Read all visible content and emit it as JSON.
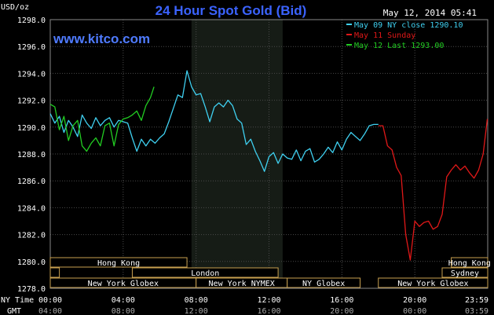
{
  "header": {
    "title": "24 Hour Spot Gold (Bid)",
    "unit": "USD/oz",
    "timestamp": "May 12, 2014 05:41",
    "watermark": "www.kitco.com"
  },
  "colors": {
    "background": "#000000",
    "plot_background": "#000000",
    "night_band": "#161c16",
    "grid": "#4a4a4a",
    "axis_text": "#ffffff",
    "title": "#3b63ff",
    "watermark": "#4f7bff",
    "cyan": "#3fd0f0",
    "red": "#e01818",
    "green": "#22cc22",
    "session_border": "#c8a050"
  },
  "chart_data": {
    "type": "line",
    "title": "24 Hour Spot Gold (Bid)",
    "ylabel": "USD/oz",
    "ylim": [
      1278.0,
      1298.0
    ],
    "y_ticks": [
      "1278.0",
      "1280.0",
      "1282.0",
      "1284.0",
      "1286.0",
      "1288.0",
      "1290.0",
      "1292.0",
      "1294.0",
      "1296.0",
      "1298.0"
    ],
    "y_tick_values": [
      1278,
      1280,
      1282,
      1284,
      1286,
      1288,
      1290,
      1292,
      1294,
      1296,
      1298
    ],
    "x_range_hours": [
      0,
      24
    ],
    "x_tick_hours": [
      0,
      4,
      8,
      12,
      16,
      20,
      24
    ],
    "x_ticks_ny": [
      "00:00",
      "04:00",
      "08:00",
      "12:00",
      "16:00",
      "20:00",
      "23:59"
    ],
    "x_ticks_gmt": [
      "04:00",
      "08:00",
      "12:00",
      "16:00",
      "20:00",
      "00:00",
      "03:59"
    ],
    "x_axis_labels": {
      "ny": "NY Time",
      "gmt": "GMT"
    },
    "shaded_region_hours": [
      7.75,
      12.75
    ],
    "legend": [
      {
        "label": "May 09 NY close 1290.10",
        "color": "#3fd0f0"
      },
      {
        "label": "May 11 Sunday",
        "color": "#e01818"
      },
      {
        "label": "May 12 Last 1293.00",
        "color": "#22cc22"
      }
    ],
    "legend_placement": "top-right",
    "series": [
      {
        "name": "May 09 NY close 1290.10",
        "color": "#3fd0f0",
        "x": [
          0,
          0.25,
          0.5,
          0.75,
          1.0,
          1.25,
          1.5,
          1.75,
          2.0,
          2.25,
          2.5,
          2.75,
          3.0,
          3.25,
          3.5,
          3.75,
          4.0,
          4.25,
          4.5,
          4.75,
          5.0,
          5.25,
          5.5,
          5.75,
          6.0,
          6.25,
          6.5,
          6.75,
          7.0,
          7.25,
          7.5,
          7.75,
          8.0,
          8.25,
          8.5,
          8.75,
          9.0,
          9.25,
          9.5,
          9.75,
          10.0,
          10.25,
          10.5,
          10.75,
          11.0,
          11.25,
          11.5,
          11.75,
          12.0,
          12.25,
          12.5,
          12.75,
          13.0,
          13.25,
          13.5,
          13.75,
          14.0,
          14.25,
          14.5,
          14.75,
          15.0,
          15.25,
          15.5,
          15.75,
          16.0,
          16.25,
          16.5,
          16.75,
          17.0,
          17.25,
          17.5,
          17.75,
          18.0
        ],
        "y": [
          1291.0,
          1290.3,
          1290.8,
          1289.6,
          1290.5,
          1290.0,
          1289.3,
          1290.9,
          1290.3,
          1289.9,
          1290.7,
          1290.1,
          1290.5,
          1290.7,
          1290.0,
          1290.5,
          1290.4,
          1290.3,
          1289.2,
          1288.2,
          1289.1,
          1288.6,
          1289.1,
          1288.8,
          1289.2,
          1289.5,
          1290.4,
          1291.4,
          1292.4,
          1292.2,
          1294.2,
          1293.0,
          1292.4,
          1292.5,
          1291.5,
          1290.4,
          1291.5,
          1291.8,
          1291.5,
          1292.0,
          1291.6,
          1290.6,
          1290.3,
          1288.7,
          1289.1,
          1288.2,
          1287.5,
          1286.7,
          1287.8,
          1288.1,
          1287.3,
          1288.0,
          1287.7,
          1287.6,
          1288.3,
          1287.5,
          1288.2,
          1288.4,
          1287.4,
          1287.6,
          1288.0,
          1288.5,
          1288.1,
          1288.9,
          1288.3,
          1289.1,
          1289.6,
          1289.3,
          1289.0,
          1289.5,
          1290.1,
          1290.2,
          1290.2
        ]
      },
      {
        "name": "May 11 Sunday",
        "color": "#e01818",
        "x": [
          18.0,
          18.25,
          18.5,
          18.75,
          19.0,
          19.25,
          19.5,
          19.75,
          20.0,
          20.25,
          20.5,
          20.75,
          21.0,
          21.25,
          21.5,
          21.75,
          22.0,
          22.25,
          22.5,
          22.75,
          23.0,
          23.25,
          23.5,
          23.75,
          23.98
        ],
        "y": [
          1290.1,
          1290.1,
          1288.6,
          1288.3,
          1287.0,
          1286.4,
          1282.0,
          1280.1,
          1283.0,
          1282.6,
          1282.9,
          1283.0,
          1282.4,
          1282.6,
          1283.5,
          1286.3,
          1286.8,
          1287.2,
          1286.8,
          1287.1,
          1286.6,
          1286.2,
          1286.8,
          1288.0,
          1290.6
        ]
      },
      {
        "name": "May 12 Last 1293.00",
        "color": "#22cc22",
        "x": [
          0,
          0.25,
          0.5,
          0.75,
          1.0,
          1.25,
          1.5,
          1.75,
          2.0,
          2.25,
          2.5,
          2.75,
          3.0,
          3.25,
          3.5,
          3.75,
          4.0,
          4.25,
          4.5,
          4.75,
          5.0,
          5.25,
          5.5,
          5.69
        ],
        "y": [
          1291.7,
          1291.5,
          1289.8,
          1290.8,
          1289.0,
          1290.1,
          1290.5,
          1288.6,
          1288.2,
          1288.8,
          1289.2,
          1288.6,
          1290.1,
          1290.3,
          1288.6,
          1290.2,
          1290.6,
          1290.7,
          1290.9,
          1291.2,
          1290.5,
          1291.6,
          1292.2,
          1293.0
        ]
      }
    ]
  },
  "sessions": [
    {
      "label": "Hong Kong",
      "row": 0,
      "start": 0.0,
      "end": 7.5
    },
    {
      "label": "Hong Kong",
      "row": 0,
      "start": 22.0,
      "end": 24.0
    },
    {
      "label": "",
      "row": 1,
      "start": 0.0,
      "end": 0.5
    },
    {
      "label": "London",
      "row": 1,
      "start": 4.5,
      "end": 12.5
    },
    {
      "label": "Sydney",
      "row": 1,
      "start": 21.5,
      "end": 24.0
    },
    {
      "label": "New York Globex",
      "row": 2,
      "start": 0.0,
      "end": 8.0
    },
    {
      "label": "New York NYMEX",
      "row": 2,
      "start": 8.0,
      "end": 13.0
    },
    {
      "label": "NY Globex",
      "row": 2,
      "start": 13.0,
      "end": 17.0
    },
    {
      "label": "New York Globex",
      "row": 2,
      "start": 18.0,
      "end": 24.0
    }
  ]
}
